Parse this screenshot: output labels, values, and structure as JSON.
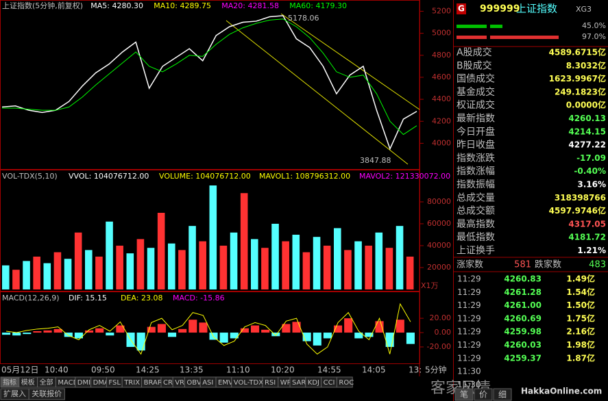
{
  "price_chart": {
    "type": "line",
    "title": "上证指数(5分钟,前复权)",
    "indicators": [
      "MA5: 4280.30",
      "MA10: 4289.75",
      "MA20: 4281.58",
      "MA60: 4179.30"
    ],
    "indicator_colors": [
      "#ffffff",
      "#ffff00",
      "#ff00ff",
      "#00ff00"
    ],
    "series": [
      {
        "name": "上证指数",
        "color": "#ffffff",
        "values": [
          4330,
          4340,
          4300,
          4280,
          4300,
          4380,
          4520,
          4640,
          4720,
          4830,
          4920,
          4500,
          4700,
          4780,
          4860,
          4750,
          4980,
          5060,
          5100,
          5110,
          5150,
          5160,
          4950,
          4870,
          4700,
          4450,
          4620,
          4700,
          4300,
          3950,
          4220,
          4290
        ]
      },
      {
        "name": "MA60",
        "color": "#00ff00",
        "values": [
          4320,
          4320,
          4310,
          4300,
          4300,
          4330,
          4420,
          4530,
          4630,
          4730,
          4830,
          4700,
          4650,
          4720,
          4800,
          4790,
          4900,
          4990,
          5050,
          5090,
          5120,
          5130,
          5060,
          4960,
          4820,
          4650,
          4600,
          4620,
          4450,
          4200,
          4080,
          4160
        ]
      }
    ],
    "annotations": [
      "5178.06",
      "3847.88"
    ],
    "ylim": [
      3760,
      5290
    ],
    "yticks": [
      4000,
      4200,
      4400,
      4600,
      4800,
      5000,
      5200
    ]
  },
  "volume_chart": {
    "type": "bar",
    "indicators": [
      "VOL-TDX(5,10)",
      "VVOL: 104076712.00",
      "VOLUME: 104076712.00",
      "MAVOL1: 108796312.00",
      "MAVOL2: 121330072.00"
    ],
    "indicator_colors": [
      "#c0c0c0",
      "#ffffff",
      "#ffff00",
      "#ffff00",
      "#ff00ff"
    ],
    "values": [
      22000,
      18000,
      26000,
      30000,
      24000,
      34000,
      28000,
      52000,
      36000,
      30000,
      62000,
      40000,
      33000,
      46000,
      38000,
      70000,
      42000,
      36000,
      58000,
      44000,
      95000,
      40000,
      52000,
      88000,
      46000,
      38000,
      60000,
      44000,
      50000,
      34000,
      48000,
      40000,
      56000,
      36000,
      44000,
      40000,
      52000,
      38000,
      58000,
      30000
    ],
    "colors": [
      "#54ffff",
      "#ff3232"
    ],
    "unit": "X1万",
    "ylim": [
      0,
      100000
    ],
    "yticks": [
      20000,
      40000,
      60000,
      80000
    ]
  },
  "macd_chart": {
    "type": "bar",
    "indicators": [
      "MACD(12,26,9)",
      "DIF: 15.15",
      "DEA: 23.08",
      "MACD: -15.86"
    ],
    "indicator_colors": [
      "#c0c0c0",
      "#ffffff",
      "#ffff00",
      "#ff00ff"
    ],
    "values": [
      -3,
      -4,
      -2,
      2,
      3,
      5,
      -6,
      -8,
      3,
      6,
      -4,
      10,
      -20,
      -25,
      8,
      12,
      -6,
      5,
      18,
      14,
      -10,
      -14,
      -8,
      6,
      10,
      4,
      -5,
      12,
      15,
      -12,
      -18,
      -8,
      10,
      20,
      -8,
      -6,
      16,
      -20,
      18,
      -15.86
    ],
    "dif": [
      2,
      0,
      3,
      5,
      6,
      8,
      -4,
      -10,
      4,
      10,
      2,
      15,
      -10,
      -30,
      14,
      20,
      4,
      10,
      28,
      24,
      -6,
      -18,
      -12,
      8,
      14,
      10,
      -4,
      16,
      20,
      -16,
      -30,
      -20,
      14,
      28,
      2,
      -10,
      20,
      -30,
      40,
      15.15
    ],
    "ylim": [
      -42,
      44
    ],
    "yticks": [
      {
        "value": -20,
        "label": "-20.00"
      },
      {
        "value": 0,
        "label": "0.00"
      },
      {
        "value": 20,
        "label": "20.00"
      }
    ]
  },
  "time_axis": [
    "05月12日",
    "10:40",
    "09:50",
    "14:25",
    "13:35",
    "11:10",
    "10:20",
    "14:55",
    "14:05",
    "13:",
    "5分钟"
  ],
  "tabs": [
    "指标",
    "模板",
    "全部",
    "MACD",
    "DMI",
    "DMA",
    "FSL",
    "TRIX",
    "BRAR",
    "CR",
    "VR",
    "OBV",
    "ASI",
    "EMV",
    "VOL-TDX",
    "RSI",
    "WR",
    "SAR",
    "KDJ",
    "CCI",
    "ROC"
  ],
  "bottom_tabs": [
    "扩展入",
    "关联报价"
  ],
  "quote": {
    "badge": "G",
    "code": "999999",
    "name": "上证指数",
    "tag": "XG3",
    "ratios": [
      "45.0%",
      "97.0%"
    ],
    "rows": [
      [
        "A股成交",
        "4589.6715亿"
      ],
      [
        "B股成交",
        "8.3032亿"
      ],
      [
        "国债成交",
        "1623.9967亿"
      ],
      [
        "基金成交",
        "249.1823亿"
      ],
      [
        "权证成交",
        "0.0000亿"
      ],
      [
        "最新指数",
        "4260.13"
      ],
      [
        "今日开盘",
        "4214.15"
      ],
      [
        "昨日收盘",
        "4277.22"
      ],
      [
        "指数涨跌",
        "-17.09"
      ],
      [
        "指数涨幅",
        "-0.40%"
      ],
      [
        "指数振幅",
        "3.16%"
      ],
      [
        "总成交量",
        "318398766"
      ],
      [
        "总成交额",
        "4597.9746亿"
      ],
      [
        "最高指数",
        "4317.05"
      ],
      [
        "最低指数",
        "4181.72"
      ],
      [
        "上证换手",
        "1.21%"
      ]
    ],
    "row_colors": [
      "#ffff54",
      "#ffff54",
      "#ffff54",
      "#ffff54",
      "#ffff54",
      "#54ff54",
      "#54ff54",
      "#ffffff",
      "#54ff54",
      "#54ff54",
      "#ffffff",
      "#ffff54",
      "#ffff54",
      "#ff5454",
      "#54ff54",
      "#ffffff"
    ],
    "advance": [
      "涨家数",
      "581",
      "跌家数",
      "483"
    ],
    "trades": [
      [
        "11:29",
        "4260.83",
        "1.49亿"
      ],
      [
        "11:29",
        "4261.28",
        "1.54亿"
      ],
      [
        "11:29",
        "4261.00",
        "1.50亿"
      ],
      [
        "11:29",
        "4260.69",
        "1.75亿"
      ],
      [
        "11:29",
        "4259.98",
        "2.16亿"
      ],
      [
        "11:29",
        "4260.03",
        "1.98亿"
      ],
      [
        "11:29",
        "4259.37",
        "1.87亿"
      ],
      [
        "11:30"
      ],
      [
        "11:30"
      ]
    ],
    "panel_tabs": [
      "笔",
      "价",
      "细"
    ]
  },
  "watermark": [
    "客家风情",
    "HakkaOnline.com"
  ]
}
